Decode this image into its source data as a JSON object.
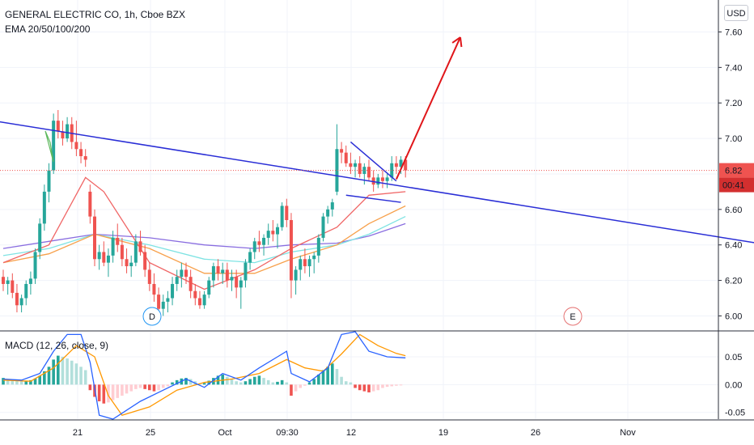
{
  "header": {
    "title": "GENERAL ELECTRIC CO, 1h, Cboe BZX",
    "indicator": "EMA 20/50/100/200",
    "currency_button": "USD"
  },
  "price_axis": {
    "ticks": [
      "7.60",
      "7.40",
      "7.20",
      "7.00",
      "6.60",
      "6.40",
      "6.20",
      "6.00"
    ],
    "last_price": "6.82",
    "countdown": "00:41"
  },
  "time_axis": {
    "ticks": [
      "21",
      "25",
      "Oct",
      "09:30",
      "12",
      "19",
      "26",
      "Nov"
    ]
  },
  "markers": {
    "dividend": "D",
    "earnings": "E"
  },
  "macd": {
    "label": "MACD (12, 26, close, 9)",
    "ticks": [
      "0.05",
      "0.00",
      "-0.05"
    ]
  },
  "colors": {
    "up": "#26a69a",
    "down": "#ef5350",
    "ema20": "#f06666",
    "ema50": "#f7a04b",
    "ema100": "#7fe3e3",
    "ema200": "#8a6ee0",
    "trendline": "#2a2ed6",
    "arrow": "#e0161a",
    "macd_line": "#2962ff",
    "signal_line": "#ff9800"
  },
  "chart_data": {
    "type": "candlestick",
    "symbol": "GENERAL ELECTRIC CO",
    "interval": "1h",
    "exchange": "Cboe BZX",
    "price_range": [
      5.92,
      7.78
    ],
    "ohlc": [
      [
        6.22,
        6.26,
        6.14,
        6.18
      ],
      [
        6.18,
        6.22,
        6.12,
        6.2
      ],
      [
        6.2,
        6.24,
        6.1,
        6.13
      ],
      [
        6.13,
        6.18,
        6.02,
        6.06
      ],
      [
        6.06,
        6.12,
        6.02,
        6.1
      ],
      [
        6.1,
        6.2,
        6.06,
        6.18
      ],
      [
        6.18,
        6.25,
        6.12,
        6.21
      ],
      [
        6.21,
        6.38,
        6.18,
        6.36
      ],
      [
        6.36,
        6.55,
        6.32,
        6.52
      ],
      [
        6.52,
        6.74,
        6.48,
        6.7
      ],
      [
        6.7,
        6.86,
        6.64,
        6.82
      ],
      [
        6.82,
        7.14,
        6.8,
        7.1
      ],
      [
        7.1,
        7.16,
        7.0,
        7.04
      ],
      [
        7.04,
        7.1,
        6.96,
        7.0
      ],
      [
        7.0,
        7.12,
        6.98,
        7.08
      ],
      [
        7.08,
        7.12,
        6.94,
        6.98
      ],
      [
        6.98,
        7.1,
        6.9,
        6.94
      ],
      [
        6.94,
        6.98,
        6.86,
        6.9
      ],
      [
        6.9,
        6.94,
        6.84,
        6.88
      ],
      [
        6.7,
        6.74,
        6.52,
        6.56
      ],
      [
        6.56,
        6.6,
        6.28,
        6.32
      ],
      [
        6.32,
        6.4,
        6.26,
        6.36
      ],
      [
        6.36,
        6.42,
        6.28,
        6.3
      ],
      [
        6.3,
        6.38,
        6.22,
        6.34
      ],
      [
        6.34,
        6.48,
        6.3,
        6.44
      ],
      [
        6.44,
        6.52,
        6.36,
        6.4
      ],
      [
        6.4,
        6.44,
        6.28,
        6.32
      ],
      [
        6.32,
        6.38,
        6.24,
        6.28
      ],
      [
        6.28,
        6.34,
        6.22,
        6.3
      ],
      [
        6.3,
        6.46,
        6.28,
        6.42
      ],
      [
        6.42,
        6.48,
        6.34,
        6.36
      ],
      [
        6.36,
        6.4,
        6.22,
        6.26
      ],
      [
        6.26,
        6.3,
        6.14,
        6.18
      ],
      [
        6.18,
        6.24,
        6.08,
        6.12
      ],
      [
        6.12,
        6.16,
        6.0,
        6.04
      ],
      [
        6.04,
        6.12,
        6.0,
        6.08
      ],
      [
        6.08,
        6.14,
        6.02,
        6.1
      ],
      [
        6.1,
        6.22,
        6.06,
        6.18
      ],
      [
        6.18,
        6.26,
        6.14,
        6.22
      ],
      [
        6.22,
        6.3,
        6.16,
        6.26
      ],
      [
        6.26,
        6.3,
        6.18,
        6.22
      ],
      [
        6.22,
        6.26,
        6.1,
        6.14
      ],
      [
        6.14,
        6.18,
        6.06,
        6.1
      ],
      [
        6.1,
        6.14,
        6.04,
        6.06
      ],
      [
        6.06,
        6.14,
        6.04,
        6.12
      ],
      [
        6.12,
        6.22,
        6.1,
        6.2
      ],
      [
        6.2,
        6.3,
        6.16,
        6.28
      ],
      [
        6.28,
        6.32,
        6.2,
        6.24
      ],
      [
        6.24,
        6.3,
        6.18,
        6.26
      ],
      [
        6.26,
        6.3,
        6.16,
        6.2
      ],
      [
        6.2,
        6.26,
        6.14,
        6.22
      ],
      [
        6.22,
        6.26,
        6.1,
        6.16
      ],
      [
        6.16,
        6.22,
        6.04,
        6.2
      ],
      [
        6.2,
        6.32,
        6.16,
        6.3
      ],
      [
        6.3,
        6.38,
        6.26,
        6.36
      ],
      [
        6.36,
        6.44,
        6.32,
        6.42
      ],
      [
        6.42,
        6.48,
        6.36,
        6.4
      ],
      [
        6.4,
        6.46,
        6.34,
        6.44
      ],
      [
        6.44,
        6.52,
        6.4,
        6.48
      ],
      [
        6.48,
        6.54,
        6.42,
        6.46
      ],
      [
        6.46,
        6.52,
        6.38,
        6.5
      ],
      [
        6.5,
        6.64,
        6.48,
        6.62
      ],
      [
        6.62,
        6.66,
        6.5,
        6.54
      ],
      [
        6.54,
        6.58,
        6.1,
        6.2
      ],
      [
        6.2,
        6.28,
        6.12,
        6.26
      ],
      [
        6.26,
        6.34,
        6.2,
        6.32
      ],
      [
        6.32,
        6.38,
        6.24,
        6.28
      ],
      [
        6.28,
        6.34,
        6.22,
        6.32
      ],
      [
        6.32,
        6.36,
        6.24,
        6.34
      ],
      [
        6.34,
        6.46,
        6.3,
        6.44
      ],
      [
        6.44,
        6.58,
        6.42,
        6.56
      ],
      [
        6.56,
        6.62,
        6.52,
        6.6
      ],
      [
        6.6,
        6.66,
        6.56,
        6.64
      ],
      [
        6.7,
        7.08,
        6.68,
        6.94
      ],
      [
        6.94,
        6.98,
        6.86,
        6.92
      ],
      [
        6.92,
        6.96,
        6.84,
        6.86
      ],
      [
        6.86,
        6.92,
        6.8,
        6.84
      ],
      [
        6.84,
        6.88,
        6.78,
        6.86
      ],
      [
        6.86,
        6.9,
        6.78,
        6.8
      ],
      [
        6.8,
        6.86,
        6.74,
        6.84
      ],
      [
        6.84,
        6.88,
        6.76,
        6.78
      ],
      [
        6.78,
        6.82,
        6.7,
        6.74
      ],
      [
        6.74,
        6.8,
        6.72,
        6.78
      ],
      [
        6.78,
        6.82,
        6.72,
        6.76
      ],
      [
        6.76,
        6.8,
        6.72,
        6.78
      ],
      [
        6.78,
        6.9,
        6.76,
        6.86
      ],
      [
        6.86,
        6.9,
        6.8,
        6.84
      ],
      [
        6.84,
        6.9,
        6.8,
        6.88
      ],
      [
        6.88,
        6.9,
        6.78,
        6.82
      ]
    ],
    "ema": {
      "ema20": [
        [
          0,
          6.3
        ],
        [
          10,
          6.4
        ],
        [
          18,
          6.78
        ],
        [
          22,
          6.7
        ],
        [
          32,
          6.3
        ],
        [
          44,
          6.15
        ],
        [
          55,
          6.26
        ],
        [
          63,
          6.38
        ],
        [
          73,
          6.5
        ],
        [
          80,
          6.68
        ],
        [
          88,
          6.7
        ]
      ],
      "ema50": [
        [
          0,
          6.3
        ],
        [
          10,
          6.35
        ],
        [
          20,
          6.46
        ],
        [
          32,
          6.38
        ],
        [
          44,
          6.24
        ],
        [
          55,
          6.24
        ],
        [
          63,
          6.32
        ],
        [
          73,
          6.4
        ],
        [
          80,
          6.52
        ],
        [
          88,
          6.62
        ]
      ],
      "ema100": [
        [
          0,
          6.34
        ],
        [
          10,
          6.38
        ],
        [
          20,
          6.46
        ],
        [
          32,
          6.4
        ],
        [
          44,
          6.32
        ],
        [
          55,
          6.3
        ],
        [
          63,
          6.36
        ],
        [
          73,
          6.4
        ],
        [
          80,
          6.46
        ],
        [
          88,
          6.56
        ]
      ],
      "ema200": [
        [
          0,
          6.38
        ],
        [
          10,
          6.42
        ],
        [
          20,
          6.46
        ],
        [
          32,
          6.44
        ],
        [
          44,
          6.4
        ],
        [
          55,
          6.38
        ],
        [
          63,
          6.4
        ],
        [
          73,
          6.41
        ],
        [
          80,
          6.45
        ],
        [
          88,
          6.52
        ]
      ]
    },
    "drawings": {
      "long_trendline": [
        [
          -12,
          7.14
        ],
        [
          165,
          6.41
        ]
      ],
      "flag_upper": [
        [
          76,
          6.98
        ],
        [
          86,
          6.76
        ]
      ],
      "flag_lower": [
        [
          75,
          6.68
        ],
        [
          87,
          6.64
        ]
      ],
      "projection_arrow": [
        [
          86,
          6.77
        ],
        [
          100,
          7.57
        ]
      ]
    },
    "macd_histogram": [
      0.012,
      0.01,
      0.009,
      0.007,
      0.006,
      0.006,
      0.008,
      0.011,
      0.016,
      0.024,
      0.032,
      0.045,
      0.052,
      0.05,
      0.047,
      0.043,
      0.038,
      0.032,
      0.026,
      -0.01,
      -0.022,
      -0.03,
      -0.034,
      -0.032,
      -0.028,
      -0.024,
      -0.02,
      -0.016,
      -0.012,
      -0.008,
      -0.006,
      -0.008,
      -0.01,
      -0.012,
      -0.01,
      -0.006,
      -0.003,
      0.004,
      0.008,
      0.011,
      0.012,
      0.01,
      0.006,
      0.002,
      0.003,
      0.007,
      0.012,
      0.016,
      0.018,
      0.014,
      0.01,
      0.006,
      0.004,
      0.006,
      0.01,
      0.014,
      0.016,
      0.012,
      0.008,
      0.004,
      0.005,
      0.008,
      0.004,
      -0.02,
      -0.012,
      -0.006,
      -0.002,
      0.004,
      0.01,
      0.018,
      0.026,
      0.032,
      0.038,
      0.028,
      0.014,
      0.006,
      0.004,
      -0.006,
      -0.01,
      -0.012,
      -0.014,
      -0.012,
      -0.01,
      -0.006,
      -0.004,
      -0.003,
      -0.002,
      -0.001
    ],
    "macd_range": [
      -0.062,
      0.095
    ]
  }
}
